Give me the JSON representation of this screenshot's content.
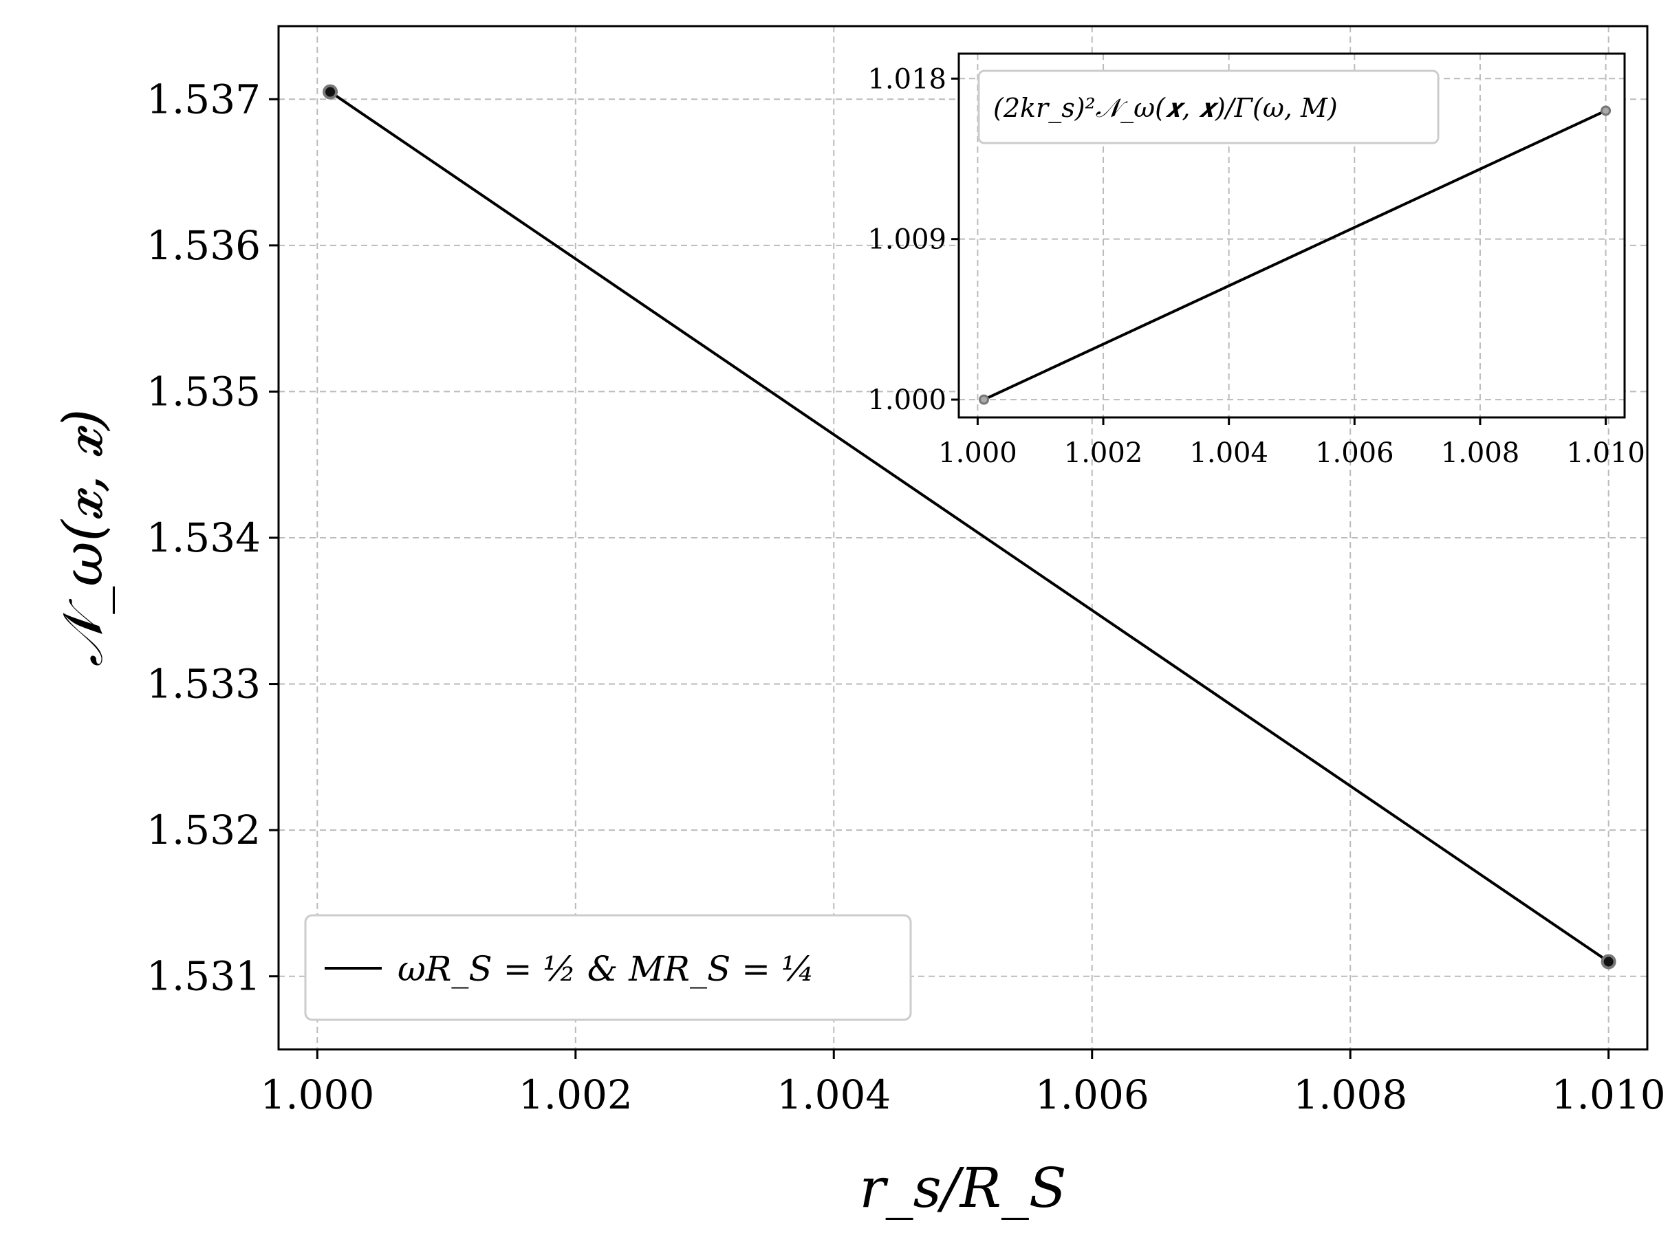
{
  "chart_data": [
    {
      "type": "line",
      "xlabel": "r_s/R_S",
      "ylabel": "𝒩_ω(𝒙, 𝒙)",
      "xlim": [
        0.9997,
        1.0103
      ],
      "ylim": [
        1.5305,
        1.5375
      ],
      "x_ticks": [
        "1.000",
        "1.002",
        "1.004",
        "1.006",
        "1.008",
        "1.010"
      ],
      "x_tick_values": [
        1.0,
        1.002,
        1.004,
        1.006,
        1.008,
        1.01
      ],
      "y_ticks": [
        "1.531",
        "1.532",
        "1.533",
        "1.534",
        "1.535",
        "1.536",
        "1.537"
      ],
      "y_tick_values": [
        1.531,
        1.532,
        1.533,
        1.534,
        1.535,
        1.536,
        1.537
      ],
      "grid": true,
      "legend_position": "lower-left",
      "series": [
        {
          "name": "ωR_S = ½ & MR_S = ¼",
          "color": "#000000",
          "x": [
            1.0001,
            1.01
          ],
          "y": [
            1.53705,
            1.5311
          ]
        }
      ]
    },
    {
      "type": "line",
      "inset": true,
      "xlim": [
        0.9997,
        1.0103
      ],
      "ylim": [
        0.999,
        1.0194
      ],
      "x_ticks": [
        "1.000",
        "1.002",
        "1.004",
        "1.006",
        "1.008",
        "1.010"
      ],
      "x_tick_values": [
        1.0,
        1.002,
        1.004,
        1.006,
        1.008,
        1.01
      ],
      "y_ticks": [
        "1.000",
        "1.009",
        "1.018"
      ],
      "y_tick_values": [
        1.0,
        1.009,
        1.018
      ],
      "grid": true,
      "legend_position": "top-left",
      "series": [
        {
          "name": "(2kr_s)²𝒩_ω(𝒙, 𝒙)/Γ(ω, M)",
          "color": "#000000",
          "x": [
            1.0001,
            1.01
          ],
          "y": [
            1.0,
            1.0162
          ]
        }
      ]
    }
  ]
}
